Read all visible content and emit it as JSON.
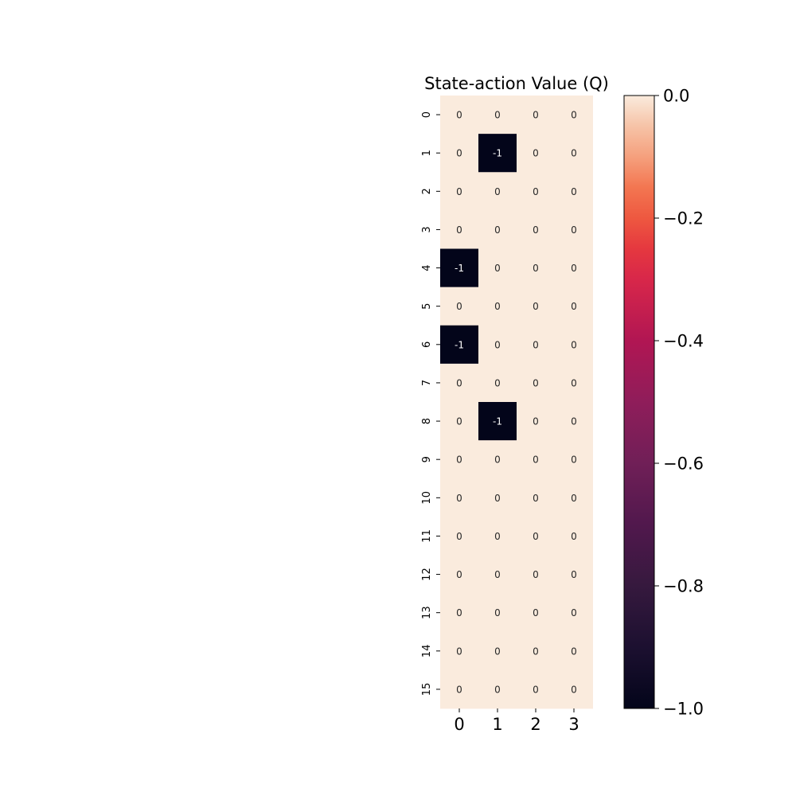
{
  "chart_data": {
    "type": "heatmap",
    "title": "State-action Value (Q)",
    "xlabel": "",
    "ylabel": "",
    "x_categories": [
      "0",
      "1",
      "2",
      "3"
    ],
    "y_categories": [
      "0",
      "1",
      "2",
      "3",
      "4",
      "5",
      "6",
      "7",
      "8",
      "9",
      "10",
      "11",
      "12",
      "13",
      "14",
      "15"
    ],
    "values": [
      [
        0,
        0,
        0,
        0
      ],
      [
        0,
        -1,
        0,
        0
      ],
      [
        0,
        0,
        0,
        0
      ],
      [
        0,
        0,
        0,
        0
      ],
      [
        -1,
        0,
        0,
        0
      ],
      [
        0,
        0,
        0,
        0
      ],
      [
        -1,
        0,
        0,
        0
      ],
      [
        0,
        0,
        0,
        0
      ],
      [
        0,
        -1,
        0,
        0
      ],
      [
        0,
        0,
        0,
        0
      ],
      [
        0,
        0,
        0,
        0
      ],
      [
        0,
        0,
        0,
        0
      ],
      [
        0,
        0,
        0,
        0
      ],
      [
        0,
        0,
        0,
        0
      ],
      [
        0,
        0,
        0,
        0
      ],
      [
        0,
        0,
        0,
        0
      ]
    ],
    "annotations": true,
    "vmin": -1.0,
    "vmax": 0.0,
    "colormap": "rocket",
    "color_low": "#03051a",
    "color_high": "#faebdd",
    "colorbar": {
      "ticks": [
        0.0,
        -0.2,
        -0.4,
        -0.6,
        -0.8,
        -1.0
      ],
      "tick_labels": [
        "0.0",
        "−0.2",
        "−0.4",
        "−0.6",
        "−0.8",
        "−1.0"
      ]
    },
    "grid": false
  }
}
